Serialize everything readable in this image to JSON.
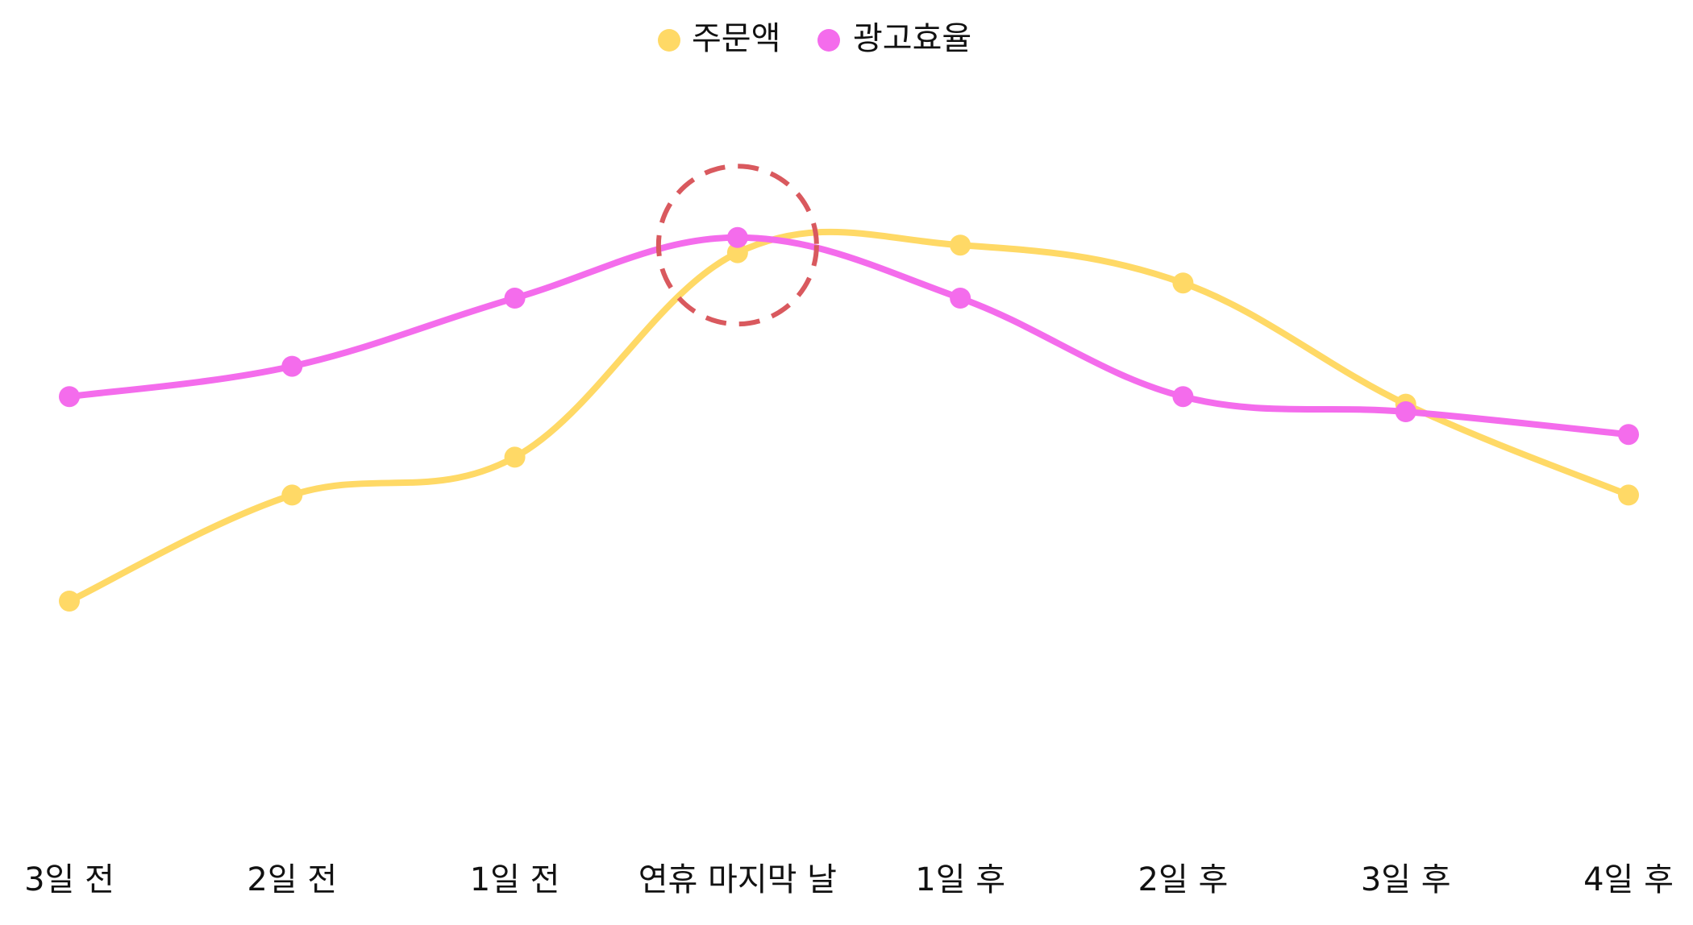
{
  "chart_data": {
    "type": "line",
    "title": "",
    "xlabel": "",
    "ylabel": "",
    "grid": false,
    "legend_position": "top-center",
    "y_axis_shown": false,
    "ylim": [
      0,
      100
    ],
    "categories": [
      "3일 전",
      "2일 전",
      "1일 전",
      "연휴 마지막 날",
      "1일 후",
      "2일 후",
      "3일 후",
      "4일 후"
    ],
    "series": [
      {
        "name": "주문액",
        "color": "#FFD966",
        "values": [
          30,
          44,
          49,
          76,
          77,
          72,
          56,
          44
        ]
      },
      {
        "name": "광고효율",
        "color": "#F46CEC",
        "values": [
          57,
          61,
          70,
          78,
          70,
          57,
          55,
          52
        ]
      }
    ],
    "annotation": {
      "shape": "dashed-circle",
      "category": "연휴 마지막 날",
      "color": "#D9595E"
    }
  }
}
